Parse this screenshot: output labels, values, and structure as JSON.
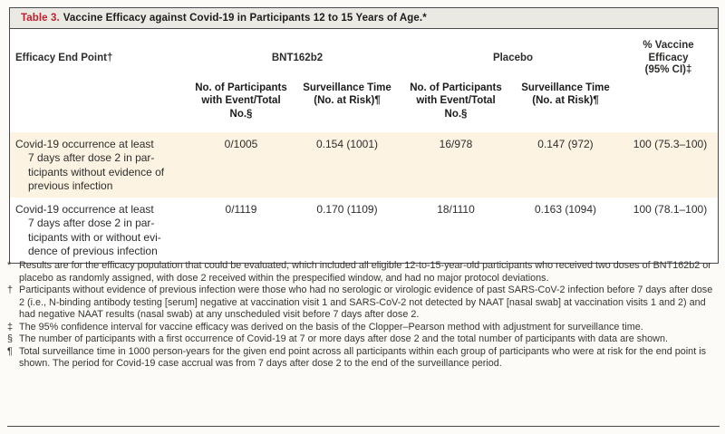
{
  "title": {
    "label": "Table 3.",
    "text": "Vaccine Efficacy against Covid-19 in Participants 12 to 15 Years of Age.*"
  },
  "table": {
    "endpoint_header": "Efficacy End Point†",
    "groups": [
      "BNT162b2",
      "Placebo"
    ],
    "efficacy_header": "% Vaccine Efficacy\n(95% CI)‡",
    "subheaders": {
      "participants": "No. of Participants\nwith Event/Total\nNo.§",
      "surveillance": "Surveillance Time\n(No. at Risk)¶"
    },
    "rows": [
      {
        "endpoint": "Covid-19 occurrence at least\n7 days after dose 2 in par-\nticipants without evidence of\nprevious infection",
        "bnt_events": "0/1005",
        "bnt_surveillance": "0.154 (1001)",
        "placebo_events": "16/978",
        "placebo_surveillance": "0.147 (972)",
        "efficacy": "100 (75.3–100)"
      },
      {
        "endpoint": "Covid-19 occurrence at least\n7 days after dose 2 in par-\nticipants with or without evi-\ndence of previous infection",
        "bnt_events": "0/1119",
        "bnt_surveillance": "0.170 (1109)",
        "placebo_events": "18/1110",
        "placebo_surveillance": "0.163 (1094)",
        "efficacy": "100 (78.1–100)"
      }
    ]
  },
  "footnotes": [
    {
      "symbol": "*",
      "text": "Results are for the efficacy population that could be evaluated, which included all eligible 12-to-15-year-old participants who received two doses of BNT162b2 or placebo as randomly assigned, with dose 2 received within the prespecified window, and had no major protocol deviations."
    },
    {
      "symbol": "†",
      "text": "Participants without evidence of previous infection were those who had no serologic or virologic evidence of past SARS-CoV-2 infection before 7 days after dose 2 (i.e., N-binding antibody testing [serum] negative at vaccination visit 1 and SARS-CoV-2 not detected by NAAT [nasal swab] at vaccination visits 1 and 2) and had negative NAAT results (nasal swab) at any unscheduled visit before 7 days after dose 2."
    },
    {
      "symbol": "‡",
      "text": "The 95% confidence interval for vaccine efficacy was derived on the basis of the Clopper–Pearson method with adjustment for surveillance time."
    },
    {
      "symbol": "§",
      "text": "The number of participants with a first occurrence of Covid-19 at 7 or more days after dose 2 and the total number of participants with data are shown."
    },
    {
      "symbol": "¶",
      "text": "Total surveillance time in 1000 person-years for the given end point across all participants within each group of participants who were at risk for the end point is shown. The period for Covid-19 case accrual was from 7 days after dose 2 to the end of the surveillance period."
    }
  ]
}
